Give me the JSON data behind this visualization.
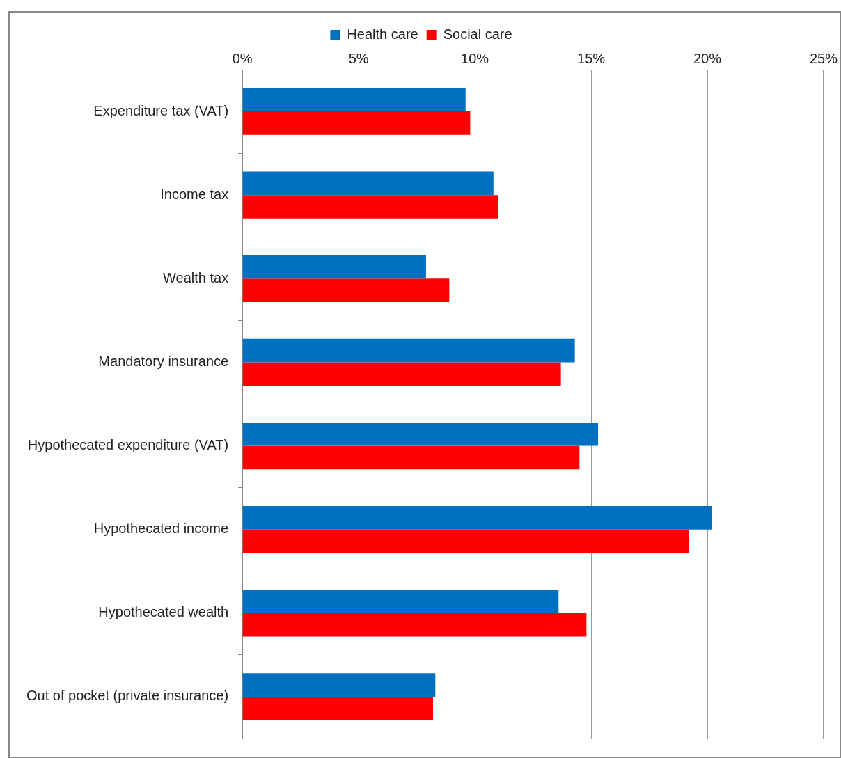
{
  "chart_data": {
    "type": "bar",
    "orientation": "horizontal",
    "categories": [
      "Expenditure tax (VAT)",
      "Income tax",
      "Wealth tax",
      "Mandatory insurance",
      "Hypothecated expenditure (VAT)",
      "Hypothecated income",
      "Hypothecated wealth",
      "Out of pocket (private insurance)"
    ],
    "series": [
      {
        "name": "Health care",
        "color": "#0070c0",
        "values": [
          9.6,
          10.8,
          7.9,
          14.3,
          15.3,
          20.2,
          13.6,
          8.3
        ]
      },
      {
        "name": "Social care",
        "color": "#ff0000",
        "values": [
          9.8,
          11.0,
          8.9,
          13.7,
          14.5,
          19.2,
          14.8,
          8.2
        ]
      }
    ],
    "xlim": [
      0,
      25
    ],
    "xticks": [
      {
        "value": 0,
        "label": "0%"
      },
      {
        "value": 5,
        "label": "5%"
      },
      {
        "value": 10,
        "label": "10%"
      },
      {
        "value": 15,
        "label": "15%"
      },
      {
        "value": 20,
        "label": "20%"
      },
      {
        "value": 25,
        "label": "25%"
      }
    ],
    "grid": "x",
    "legend": "top"
  }
}
